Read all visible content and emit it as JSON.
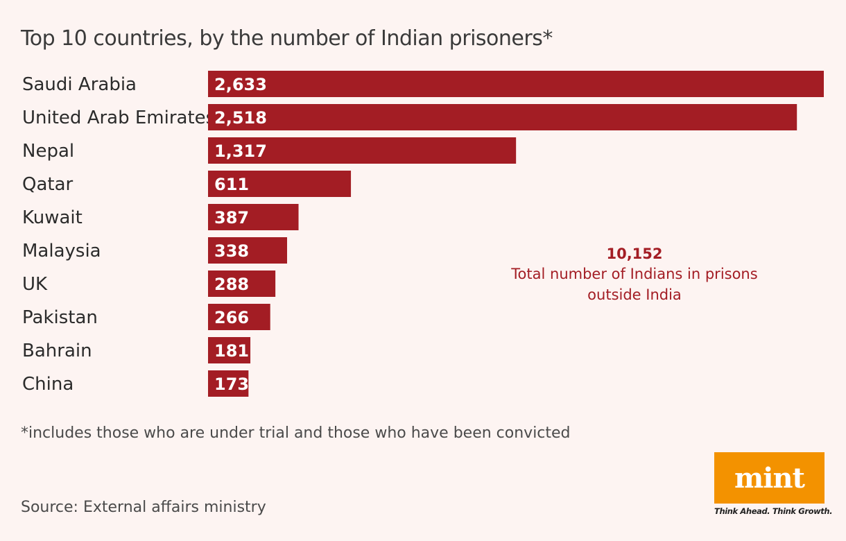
{
  "header": {
    "title": "Top 10 countries, by the number of Indian prisoners*"
  },
  "chart_data": {
    "type": "bar",
    "orientation": "horizontal",
    "title": "Top 10 countries, by the number of Indian prisoners*",
    "categories": [
      "Saudi Arabia",
      "United Arab Emirates",
      "Nepal",
      "Qatar",
      "Kuwait",
      "Malaysia",
      "UK",
      "Pakistan",
      "Bahrain",
      "China"
    ],
    "values": [
      2633,
      2518,
      1317,
      611,
      387,
      338,
      288,
      266,
      181,
      173
    ],
    "value_labels": [
      "2,633",
      "2,518",
      "1,317",
      "611",
      "387",
      "338",
      "288",
      "266",
      "181",
      "173"
    ],
    "xlim": [
      0,
      2633
    ],
    "bar_color": "#a31d24",
    "grid": false,
    "xlabel": "",
    "ylabel": ""
  },
  "annotation": {
    "total_value": "10,152",
    "total_label_line1": "Total number of Indians in prisons",
    "total_label_line2": "outside India"
  },
  "footnote": "*includes those who are under trial and those who have been convicted",
  "source": "Source: External affairs ministry",
  "brand": {
    "logo_text": "mint",
    "tagline": "Think Ahead. Think Growth.",
    "logo_color": "#f39200"
  }
}
